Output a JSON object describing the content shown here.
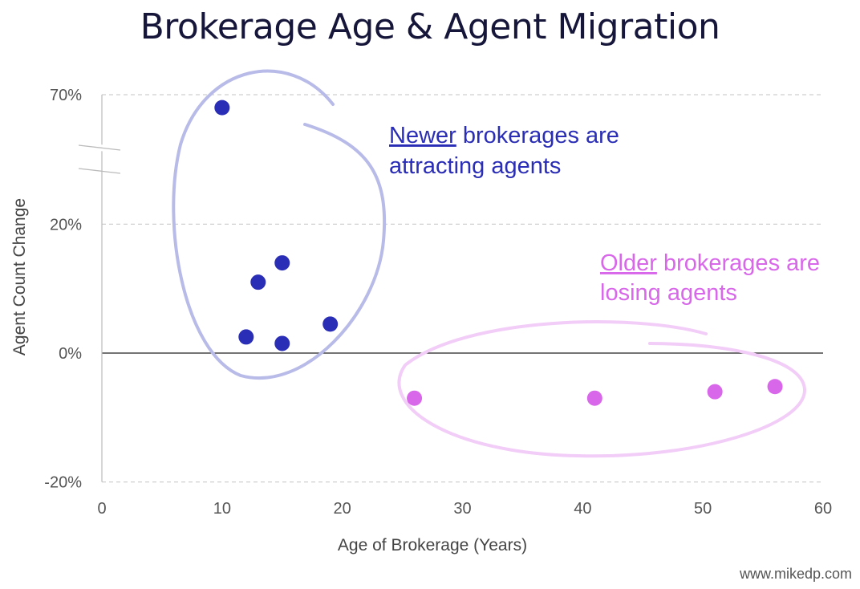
{
  "title": "Brokerage Age & Agent Migration",
  "credit": "www.mikedp.com",
  "colors": {
    "newer": "#2a2db5",
    "older": "#d867ea",
    "newer_ellipse": "#b8bbe8",
    "older_ellipse": "#f2cdf7"
  },
  "annotations": {
    "newer": {
      "emph": "Newer",
      "rest1": " brokerages are",
      "line2": "attracting agents"
    },
    "older": {
      "emph": "Older",
      "rest1": " brokerages are",
      "line2": "losing agents"
    }
  },
  "chart_data": {
    "type": "scatter",
    "title": "Brokerage Age & Agent Migration",
    "xlabel": "Age of Brokerage (Years)",
    "ylabel": "Agent Count Change",
    "xlim": [
      0,
      60
    ],
    "ylim": [
      -20,
      70
    ],
    "x_ticks": [
      0,
      10,
      20,
      30,
      40,
      50,
      60
    ],
    "y_ticks": [
      -20,
      0,
      20,
      70
    ],
    "y_tick_labels": [
      "-20%",
      "0%",
      "20%",
      "70%"
    ],
    "axis_break": "between 20% and 70%",
    "grid": "horizontal dashed",
    "series": [
      {
        "x": [
          10,
          12,
          13,
          15,
          15,
          19
        ],
        "y": [
          65,
          2.5,
          11,
          14,
          1.5,
          4.5
        ]
      },
      {
        "x": [
          26,
          41,
          51,
          56
        ],
        "y": [
          -7,
          -7,
          -6,
          -5.2
        ]
      }
    ]
  }
}
